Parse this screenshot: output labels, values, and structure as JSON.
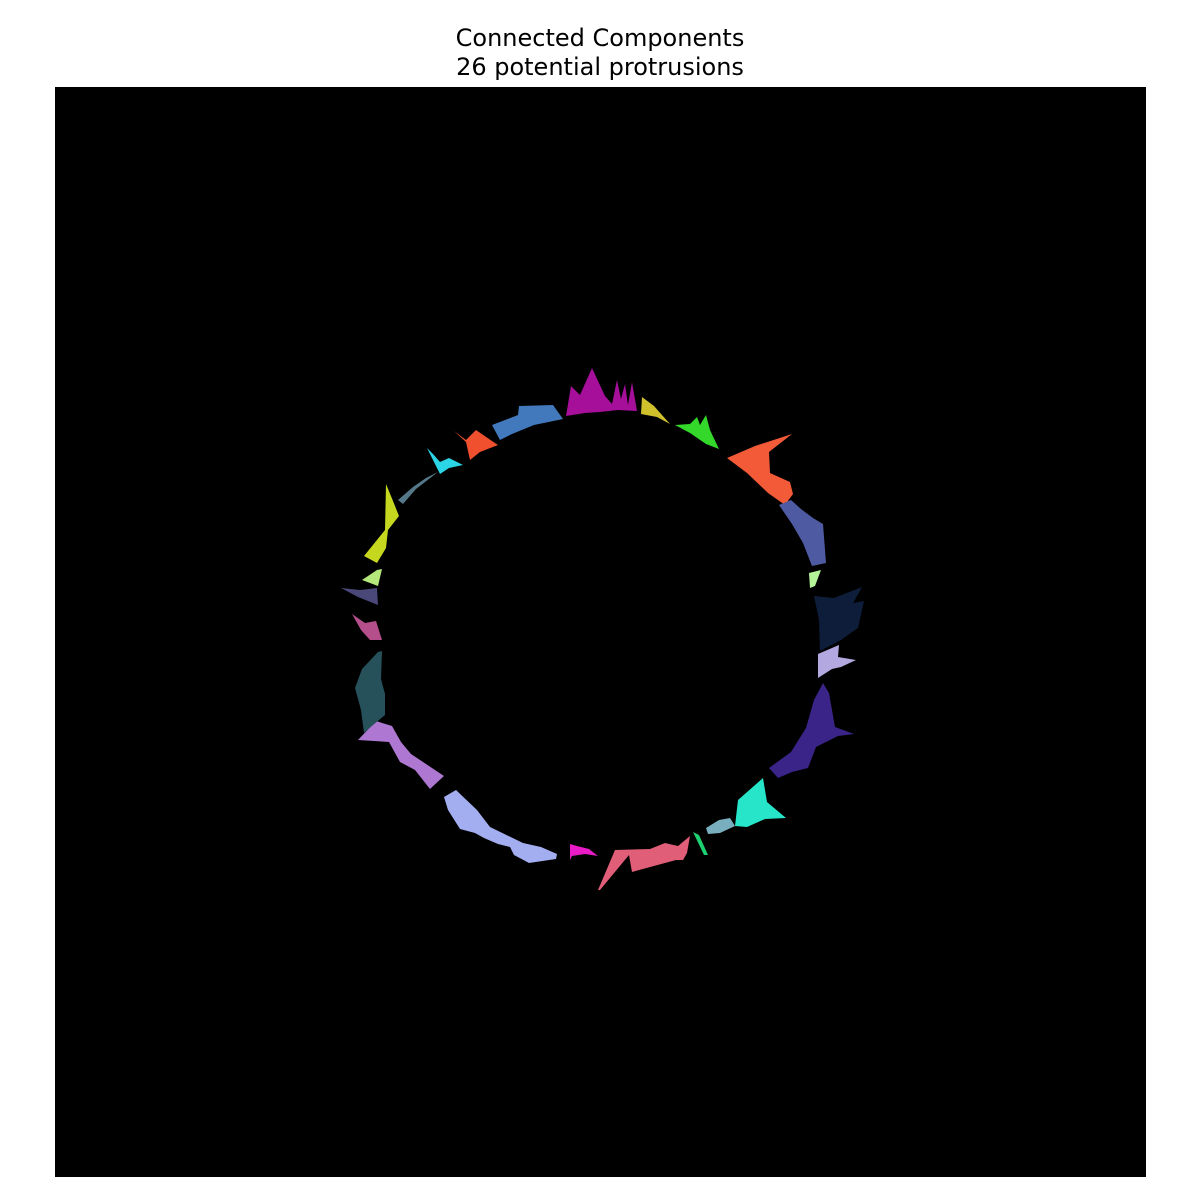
{
  "figure": {
    "title": "Connected Components",
    "subtitle": "26 potential protrusions"
  },
  "image": {
    "background": "#000000",
    "description_free": true,
    "components": [
      {
        "id": 1,
        "color": "#a50f9a"
      },
      {
        "id": 2,
        "color": "#c8c12a"
      },
      {
        "id": 3,
        "color": "#34d82a"
      },
      {
        "id": 4,
        "color": "#f35a38"
      },
      {
        "id": 5,
        "color": "#4e5ba3"
      },
      {
        "id": 6,
        "color": "#b4f59a"
      },
      {
        "id": 7,
        "color": "#0e1e3a"
      },
      {
        "id": 8,
        "color": "#b4a8e0"
      },
      {
        "id": 9,
        "color": "#3a2487"
      },
      {
        "id": 10,
        "color": "#27e5c9"
      },
      {
        "id": 11,
        "color": "#78aebd"
      },
      {
        "id": 12,
        "color": "#1fd070"
      },
      {
        "id": 13,
        "color": "#e05e78"
      },
      {
        "id": 14,
        "color": "#e81bc7"
      },
      {
        "id": 15,
        "color": "#a3aef0"
      },
      {
        "id": 16,
        "color": "#ae78d2"
      },
      {
        "id": 17,
        "color": "#26515a"
      },
      {
        "id": 18,
        "color": "#b54f8c"
      },
      {
        "id": 19,
        "color": "#4a4878"
      },
      {
        "id": 20,
        "color": "#b5e87a"
      },
      {
        "id": 21,
        "color": "#c5d81f"
      },
      {
        "id": 22,
        "color": "#547888"
      },
      {
        "id": 23,
        "color": "#2bd5e6"
      },
      {
        "id": 24,
        "color": "#f0502d"
      },
      {
        "id": 25,
        "color": "#4279bc"
      },
      {
        "id": 26,
        "color": "#d0c12c"
      }
    ]
  }
}
